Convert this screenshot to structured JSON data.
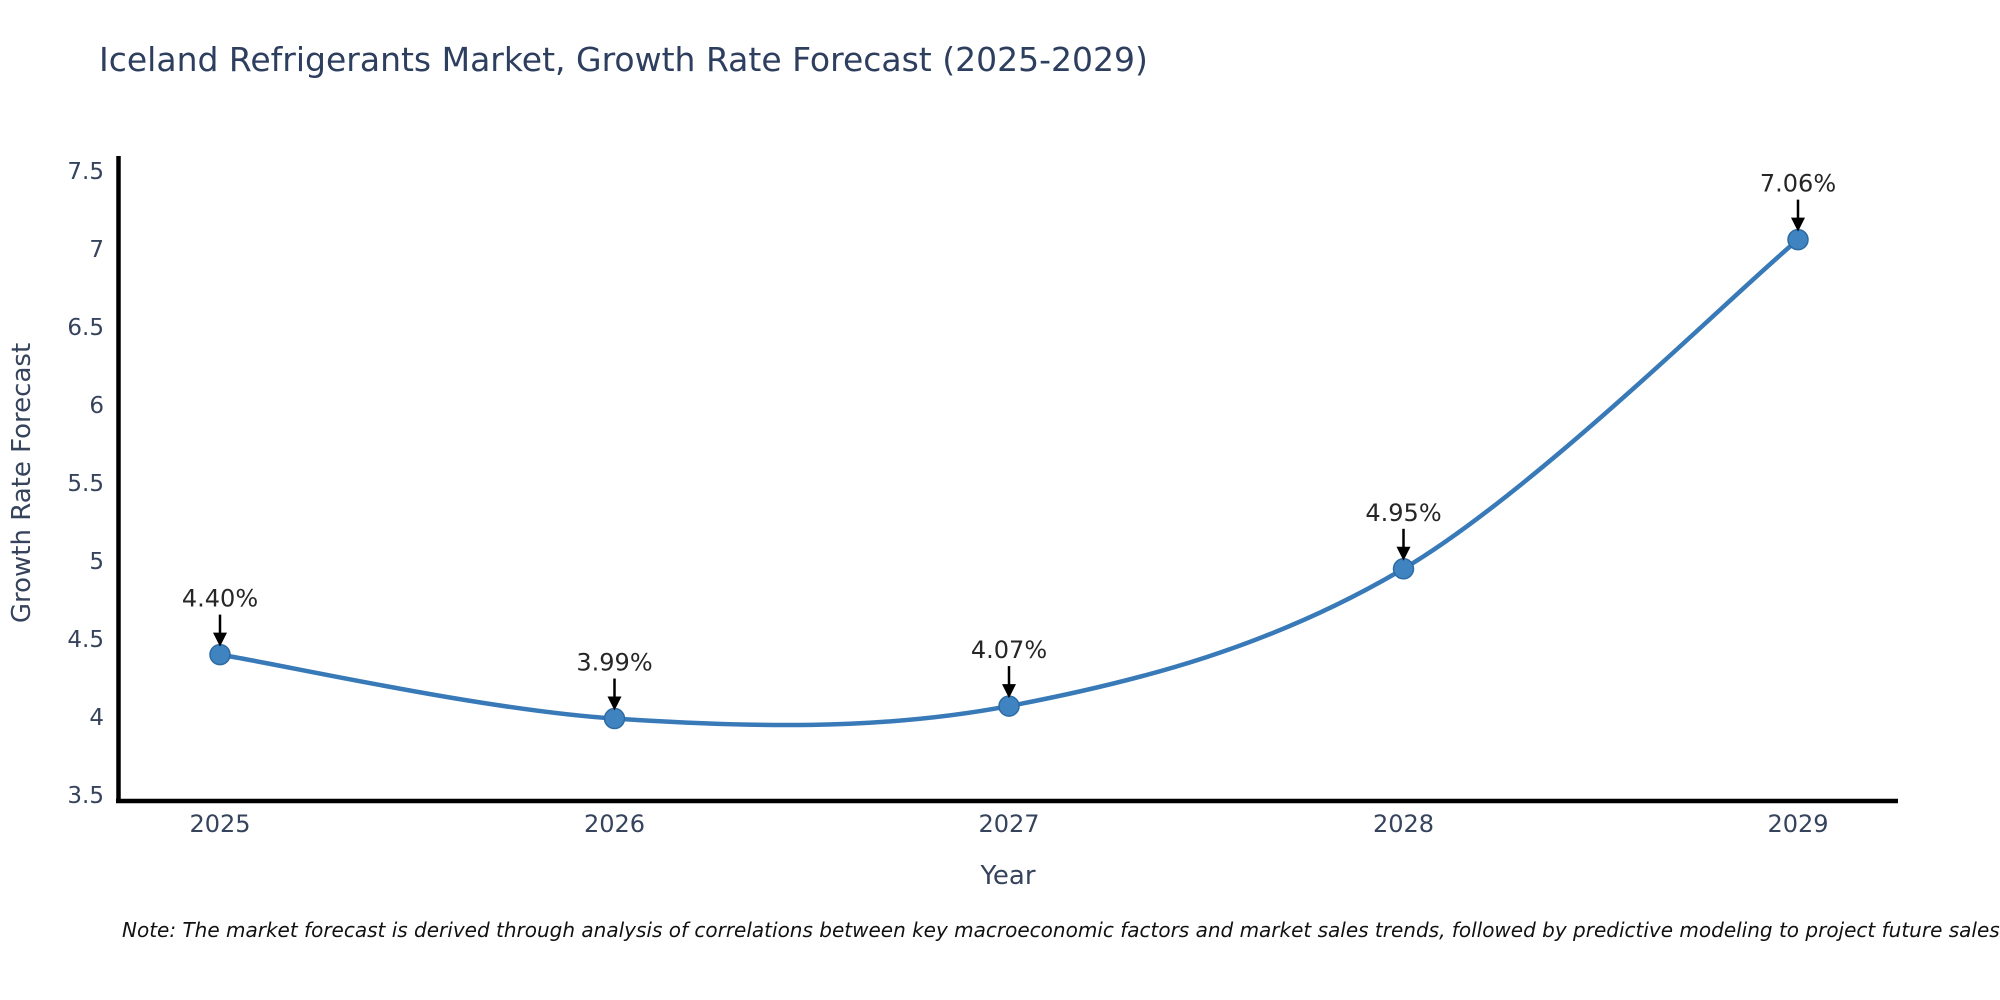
{
  "title": "Iceland Refrigerants Market, Growth Rate Forecast (2025-2029)",
  "note": "Note: The market forecast is derived through analysis of correlations between key macroeconomic factors and market sales trends, followed by predictive modeling to project future sales",
  "chart_data": {
    "type": "line",
    "title": "Iceland Refrigerants Market, Growth Rate Forecast (2025-2029)",
    "xlabel": "Year",
    "ylabel": "Growth Rate Forecast",
    "categories": [
      "2025",
      "2026",
      "2027",
      "2028",
      "2029"
    ],
    "values": [
      4.4,
      3.99,
      4.07,
      4.95,
      7.06
    ],
    "point_labels": [
      "4.40%",
      "3.99%",
      "4.07%",
      "4.95%",
      "7.06%"
    ],
    "ylim": [
      3.5,
      7.5
    ],
    "yticks": [
      "3.5",
      "4",
      "4.5",
      "5",
      "5.5",
      "6",
      "6.5",
      "7",
      "7.5"
    ],
    "ytick_values": [
      3.5,
      4,
      4.5,
      5,
      5.5,
      6,
      6.5,
      7,
      7.5
    ],
    "grid": false,
    "legend": "none",
    "smooth_curve": true,
    "colors": {
      "line": "#3879b8",
      "marker_fill": "#3f84c1",
      "marker_edge": "#2d6ba3",
      "axis_spine": "#000000",
      "tick_text": "#36435c",
      "axis_title_text": "#36435c",
      "title_text": "#2d3e5f",
      "annotation_text": "#262626",
      "annotation_arrow": "#000000"
    }
  }
}
